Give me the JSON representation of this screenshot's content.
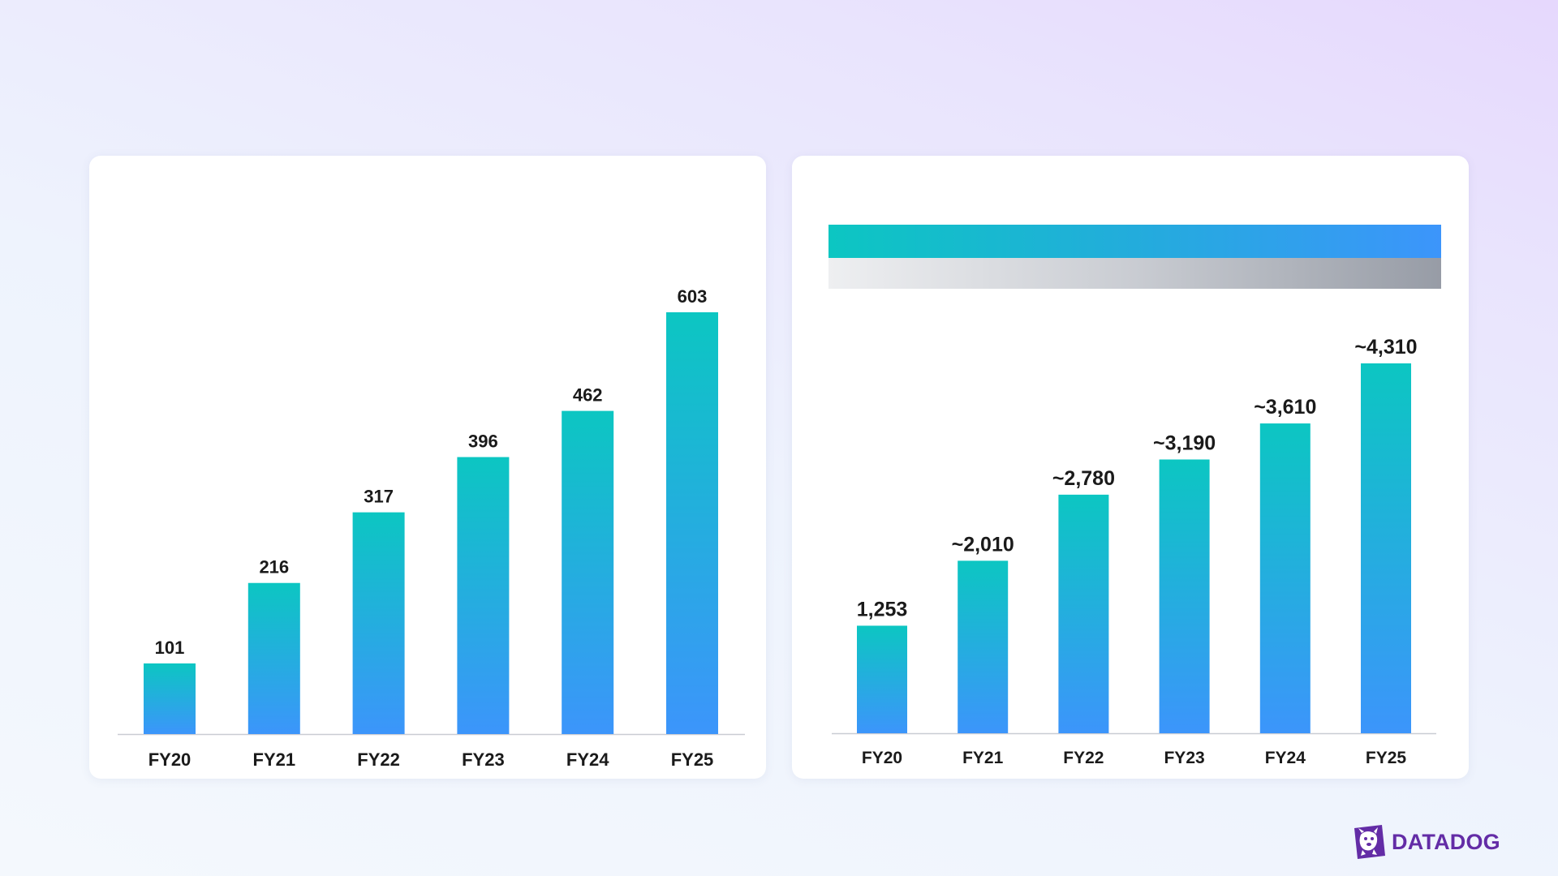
{
  "brand": {
    "name": "DATADOG",
    "color": "#632ca6"
  },
  "colors": {
    "bar_top": "#0cc6c2",
    "bar_bottom": "#3c95fb",
    "legend_gray_start": "#eeeff1",
    "legend_gray_end": "#979ca6"
  },
  "chart_data": [
    {
      "type": "bar",
      "categories": [
        "FY20",
        "FY21",
        "FY22",
        "FY23",
        "FY24",
        "FY25"
      ],
      "values": [
        101,
        216,
        317,
        396,
        462,
        603
      ],
      "value_labels": [
        "101",
        "216",
        "317",
        "396",
        "462",
        "603"
      ],
      "ylim": [
        0,
        603
      ],
      "grid": false
    },
    {
      "type": "bar",
      "categories": [
        "FY20",
        "FY21",
        "FY22",
        "FY23",
        "FY24",
        "FY25"
      ],
      "values": [
        1253,
        2010,
        2780,
        3190,
        3610,
        4310
      ],
      "value_labels": [
        "1,253",
        "~2,010",
        "~2,780",
        "~3,190",
        "~3,610",
        "~4,310"
      ],
      "ylim": [
        0,
        4310
      ],
      "grid": false
    }
  ]
}
